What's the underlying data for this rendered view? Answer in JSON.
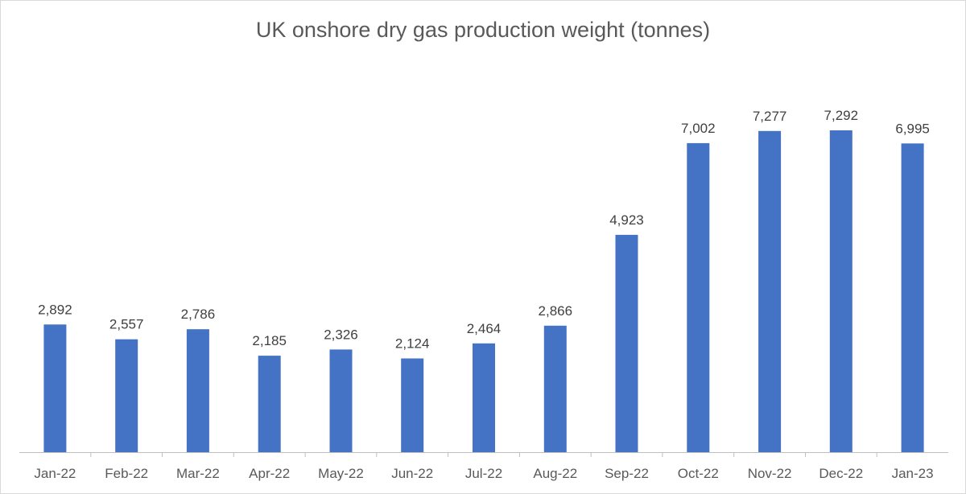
{
  "chart_data": {
    "type": "bar",
    "title": "UK onshore dry gas production weight (tonnes)",
    "xlabel": "",
    "ylabel": "",
    "ylim": [
      0,
      8000
    ],
    "grid": false,
    "legend": "none",
    "bar_color": "#4472C4",
    "categories": [
      "Jan-22",
      "Feb-22",
      "Mar-22",
      "Apr-22",
      "May-22",
      "Jun-22",
      "Jul-22",
      "Aug-22",
      "Sep-22",
      "Oct-22",
      "Nov-22",
      "Dec-22",
      "Jan-23"
    ],
    "values": [
      2892,
      2557,
      2786,
      2185,
      2326,
      2124,
      2464,
      2866,
      4923,
      7002,
      7277,
      7292,
      6995
    ],
    "data_labels": [
      "2,892",
      "2,557",
      "2,786",
      "2,185",
      "2,326",
      "2,124",
      "2,464",
      "2,866",
      "4,923",
      "7,002",
      "7,277",
      "7,292",
      "6,995"
    ]
  }
}
